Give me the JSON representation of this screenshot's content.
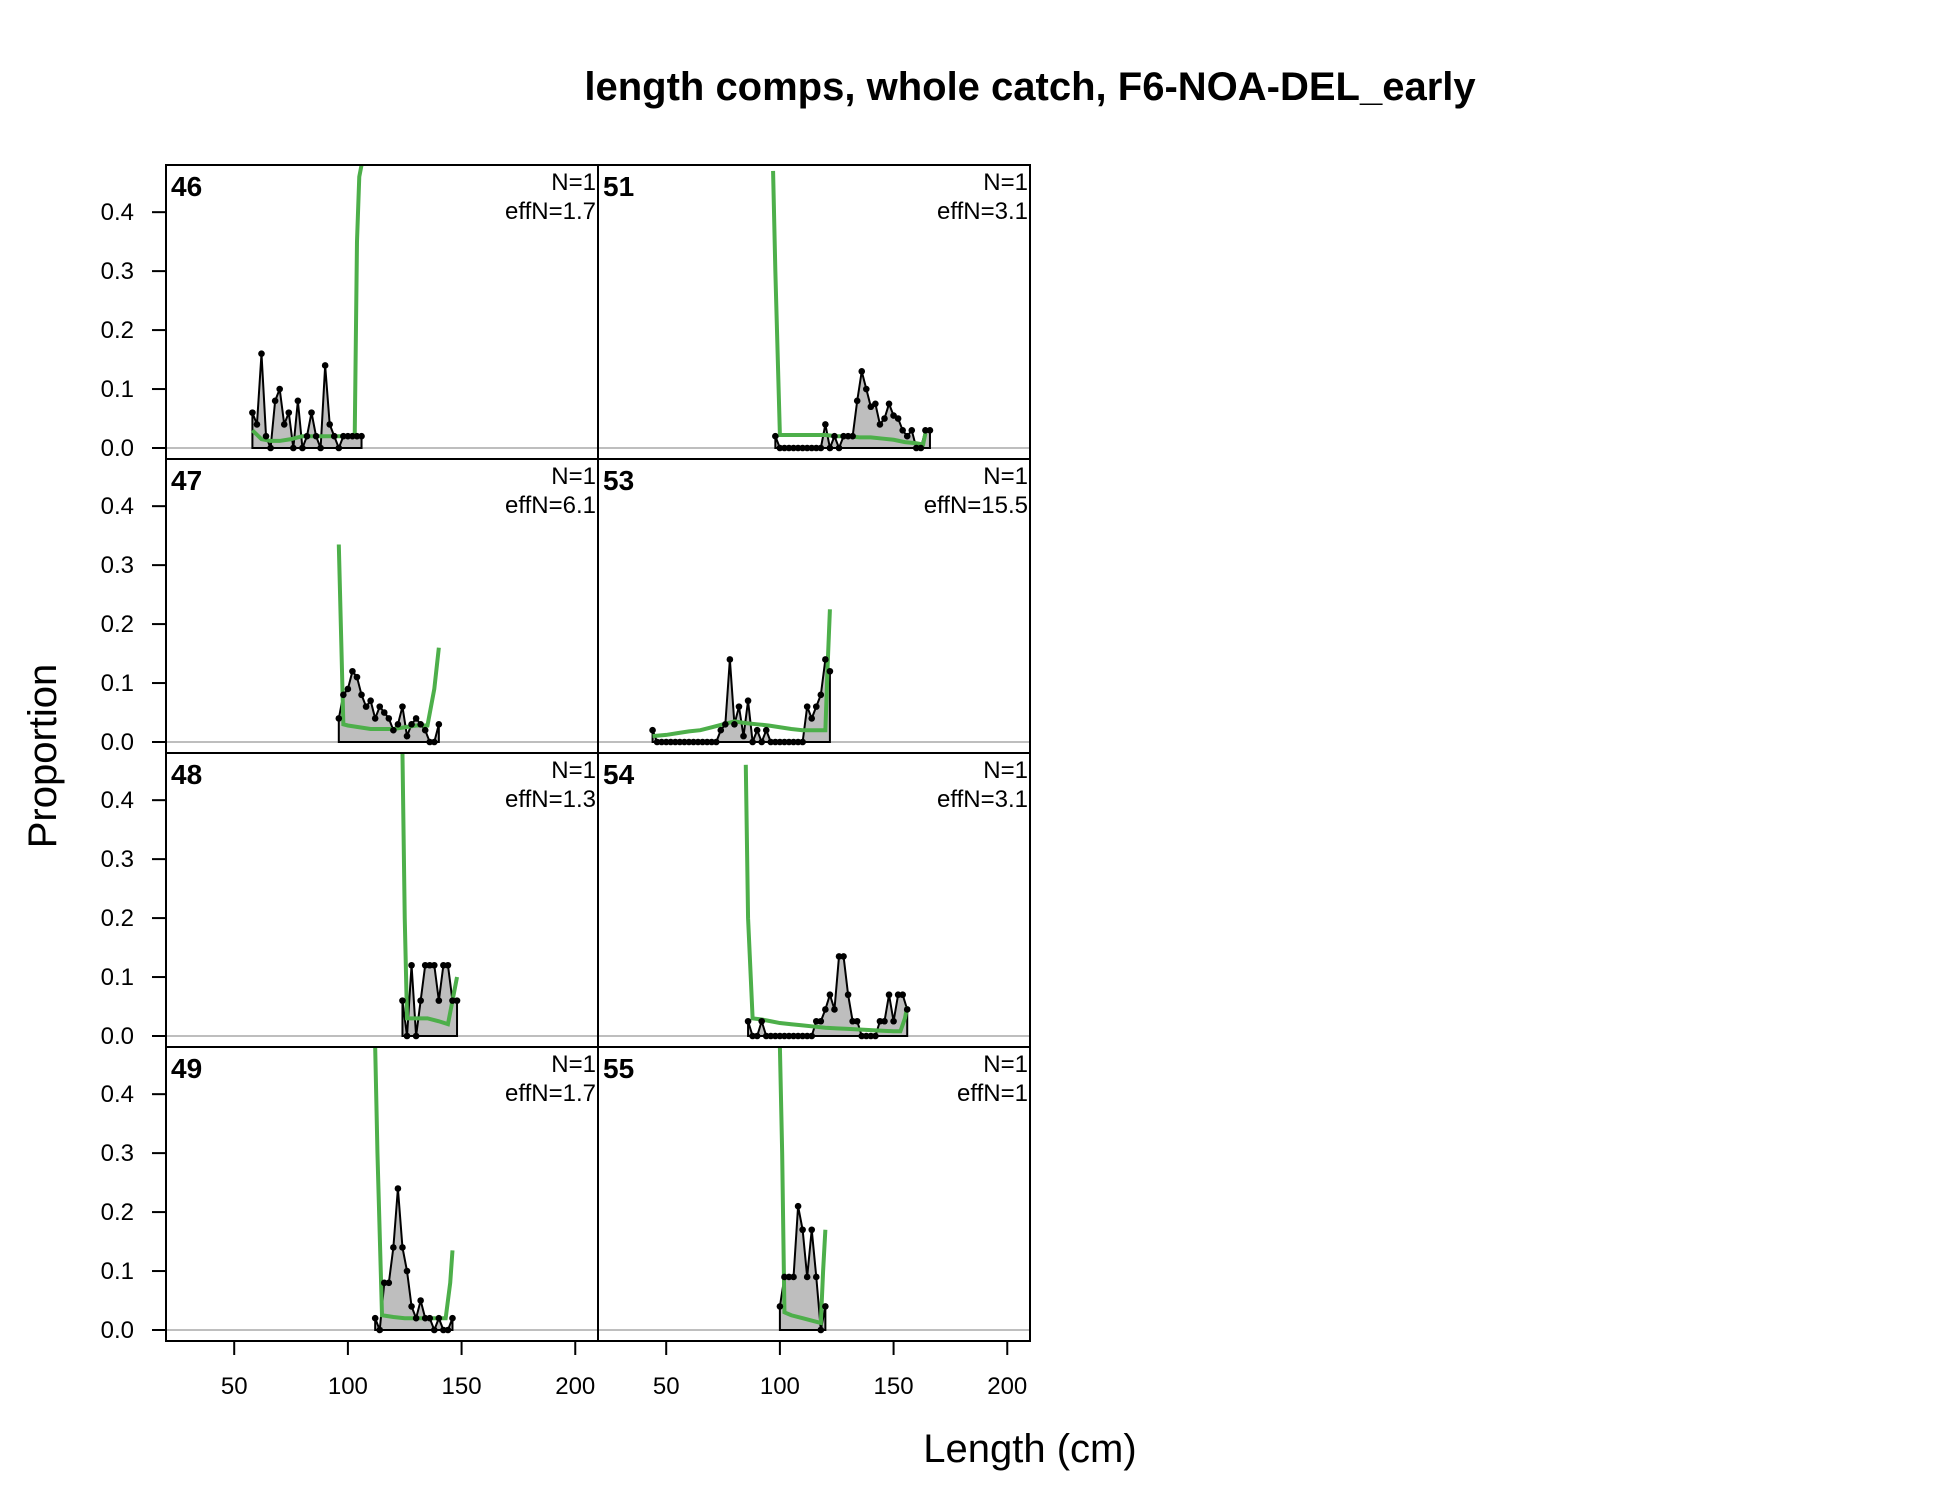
{
  "chart_data": {
    "type": "area",
    "title": "length comps, whole catch, F6-NOA-DEL_early",
    "xlabel": "Length (cm)",
    "ylabel": "Proportion",
    "xlim": [
      20,
      210
    ],
    "ylim": [
      0,
      0.48
    ],
    "xticks": [
      50,
      100,
      150,
      200
    ],
    "yticks": [
      0.0,
      0.1,
      0.2,
      0.3,
      0.4
    ],
    "xtick_labels": [
      "50",
      "100",
      "150",
      "200"
    ],
    "ytick_labels": [
      "0.0",
      "0.1",
      "0.2",
      "0.3",
      "0.4"
    ],
    "grid": false,
    "colors": {
      "observed_fill": "#bebebe",
      "observed_line": "#000000",
      "expected_line": "#4daf4a",
      "zero_line": "#bebebe"
    },
    "layout": "4 rows x 2 columns, column-major",
    "panels": [
      {
        "id": "46",
        "N": "N=1",
        "effN": "effN=1.7",
        "observed": {
          "x": [
            58,
            60,
            62,
            64,
            66,
            68,
            70,
            72,
            74,
            76,
            78,
            80,
            82,
            84,
            86,
            88,
            90,
            92,
            94,
            96,
            98,
            100,
            102,
            104,
            106
          ],
          "y": [
            0.06,
            0.04,
            0.16,
            0.02,
            0.0,
            0.08,
            0.1,
            0.04,
            0.06,
            0.0,
            0.08,
            0.0,
            0.02,
            0.06,
            0.02,
            0.0,
            0.14,
            0.04,
            0.02,
            0.0,
            0.02,
            0.02,
            0.02,
            0.02,
            0.02
          ]
        },
        "expected": {
          "x": [
            58,
            62,
            66,
            70,
            75,
            80,
            85,
            90,
            95,
            100,
            103,
            104,
            105,
            106
          ],
          "y": [
            0.03,
            0.015,
            0.012,
            0.012,
            0.015,
            0.02,
            0.02,
            0.02,
            0.02,
            0.02,
            0.02,
            0.35,
            0.46,
            0.48
          ]
        }
      },
      {
        "id": "47",
        "N": "N=1",
        "effN": "effN=6.1",
        "observed": {
          "x": [
            96,
            98,
            100,
            102,
            104,
            106,
            108,
            110,
            112,
            114,
            116,
            118,
            120,
            122,
            124,
            126,
            128,
            130,
            132,
            134,
            136,
            138,
            140
          ],
          "y": [
            0.04,
            0.08,
            0.09,
            0.12,
            0.11,
            0.08,
            0.06,
            0.07,
            0.04,
            0.06,
            0.05,
            0.04,
            0.02,
            0.03,
            0.06,
            0.01,
            0.03,
            0.04,
            0.03,
            0.02,
            0.0,
            0.0,
            0.03
          ]
        },
        "expected": {
          "x": [
            96,
            98,
            100,
            105,
            110,
            115,
            120,
            125,
            130,
            135,
            138,
            140
          ],
          "y": [
            0.335,
            0.03,
            0.028,
            0.025,
            0.022,
            0.022,
            0.022,
            0.025,
            0.028,
            0.028,
            0.09,
            0.16
          ]
        }
      },
      {
        "id": "48",
        "N": "N=1",
        "effN": "effN=1.3",
        "observed": {
          "x": [
            124,
            126,
            128,
            130,
            132,
            134,
            136,
            138,
            140,
            142,
            144,
            146,
            148
          ],
          "y": [
            0.06,
            0.0,
            0.12,
            0.0,
            0.06,
            0.12,
            0.12,
            0.12,
            0.06,
            0.12,
            0.12,
            0.06,
            0.06
          ]
        },
        "expected": {
          "x": [
            124,
            125,
            126,
            130,
            135,
            140,
            144,
            146,
            148
          ],
          "y": [
            0.48,
            0.2,
            0.03,
            0.03,
            0.03,
            0.025,
            0.02,
            0.06,
            0.1
          ]
        }
      },
      {
        "id": "49",
        "N": "N=1",
        "effN": "effN=1.7",
        "observed": {
          "x": [
            112,
            114,
            116,
            118,
            120,
            122,
            124,
            126,
            128,
            130,
            132,
            134,
            136,
            138,
            140,
            142,
            144,
            146
          ],
          "y": [
            0.02,
            0.0,
            0.08,
            0.08,
            0.14,
            0.24,
            0.14,
            0.1,
            0.04,
            0.02,
            0.05,
            0.02,
            0.02,
            0.0,
            0.02,
            0.0,
            0.0,
            0.02
          ]
        },
        "expected": {
          "x": [
            112,
            113,
            115,
            120,
            125,
            130,
            135,
            140,
            143,
            145,
            146
          ],
          "y": [
            0.48,
            0.3,
            0.025,
            0.022,
            0.02,
            0.02,
            0.02,
            0.02,
            0.02,
            0.08,
            0.135
          ]
        }
      },
      {
        "id": "51",
        "N": "N=1",
        "effN": "effN=3.1",
        "observed": {
          "x": [
            98,
            100,
            102,
            104,
            106,
            108,
            110,
            112,
            114,
            116,
            118,
            120,
            122,
            124,
            126,
            128,
            130,
            132,
            134,
            136,
            138,
            140,
            142,
            144,
            146,
            148,
            150,
            152,
            154,
            156,
            158,
            160,
            162,
            164,
            166
          ],
          "y": [
            0.02,
            0.0,
            0.0,
            0.0,
            0.0,
            0.0,
            0.0,
            0.0,
            0.0,
            0.0,
            0.0,
            0.04,
            0.0,
            0.02,
            0.0,
            0.02,
            0.02,
            0.02,
            0.08,
            0.13,
            0.1,
            0.07,
            0.075,
            0.04,
            0.05,
            0.075,
            0.055,
            0.05,
            0.03,
            0.02,
            0.03,
            0.0,
            0.0,
            0.03,
            0.03
          ]
        },
        "expected": {
          "x": [
            97,
            98,
            100,
            105,
            110,
            115,
            120,
            125,
            130,
            135,
            140,
            145,
            150,
            155,
            160,
            163,
            164
          ],
          "y": [
            0.47,
            0.3,
            0.022,
            0.022,
            0.022,
            0.022,
            0.022,
            0.02,
            0.02,
            0.018,
            0.018,
            0.016,
            0.014,
            0.01,
            0.008,
            0.006,
            0.025
          ]
        }
      },
      {
        "id": "53",
        "N": "N=1",
        "effN": "effN=15.5",
        "observed": {
          "x": [
            44,
            46,
            48,
            50,
            52,
            54,
            56,
            58,
            60,
            62,
            64,
            66,
            68,
            70,
            72,
            74,
            76,
            78,
            80,
            82,
            84,
            86,
            88,
            90,
            92,
            94,
            96,
            98,
            100,
            102,
            104,
            106,
            108,
            110,
            112,
            114,
            116,
            118,
            120,
            122
          ],
          "y": [
            0.02,
            0.0,
            0.0,
            0.0,
            0.0,
            0.0,
            0.0,
            0.0,
            0.0,
            0.0,
            0.0,
            0.0,
            0.0,
            0.0,
            0.0,
            0.02,
            0.03,
            0.14,
            0.03,
            0.06,
            0.01,
            0.07,
            0.0,
            0.02,
            0.0,
            0.02,
            0.0,
            0.0,
            0.0,
            0.0,
            0.0,
            0.0,
            0.0,
            0.0,
            0.06,
            0.04,
            0.06,
            0.08,
            0.14,
            0.12
          ]
        },
        "expected": {
          "x": [
            44,
            50,
            55,
            60,
            65,
            70,
            75,
            80,
            85,
            90,
            95,
            100,
            105,
            110,
            115,
            120,
            121,
            122
          ],
          "y": [
            0.01,
            0.012,
            0.015,
            0.018,
            0.02,
            0.025,
            0.03,
            0.035,
            0.032,
            0.03,
            0.028,
            0.025,
            0.022,
            0.02,
            0.02,
            0.02,
            0.13,
            0.225
          ]
        }
      },
      {
        "id": "54",
        "N": "N=1",
        "effN": "effN=3.1",
        "observed": {
          "x": [
            86,
            88,
            90,
            92,
            94,
            96,
            98,
            100,
            102,
            104,
            106,
            108,
            110,
            112,
            114,
            116,
            118,
            120,
            122,
            124,
            126,
            128,
            130,
            132,
            134,
            136,
            138,
            140,
            142,
            144,
            146,
            148,
            150,
            152,
            154,
            156
          ],
          "y": [
            0.025,
            0.0,
            0.0,
            0.025,
            0.0,
            0.0,
            0.0,
            0.0,
            0.0,
            0.0,
            0.0,
            0.0,
            0.0,
            0.0,
            0.0,
            0.025,
            0.025,
            0.045,
            0.07,
            0.045,
            0.135,
            0.135,
            0.07,
            0.025,
            0.025,
            0.0,
            0.0,
            0.0,
            0.0,
            0.025,
            0.025,
            0.07,
            0.025,
            0.07,
            0.07,
            0.045
          ]
        },
        "expected": {
          "x": [
            85,
            86,
            88,
            92,
            96,
            100,
            105,
            110,
            115,
            120,
            125,
            130,
            135,
            140,
            145,
            150,
            153,
            155,
            156
          ],
          "y": [
            0.46,
            0.2,
            0.03,
            0.028,
            0.025,
            0.022,
            0.02,
            0.018,
            0.016,
            0.014,
            0.013,
            0.012,
            0.011,
            0.01,
            0.009,
            0.008,
            0.008,
            0.03,
            0.05
          ]
        }
      },
      {
        "id": "55",
        "N": "N=1",
        "effN": "effN=1",
        "observed": {
          "x": [
            100,
            102,
            104,
            106,
            108,
            110,
            112,
            114,
            116,
            118,
            120
          ],
          "y": [
            0.04,
            0.09,
            0.09,
            0.09,
            0.21,
            0.17,
            0.09,
            0.17,
            0.09,
            0.0,
            0.04
          ]
        },
        "expected": {
          "x": [
            100,
            101,
            102,
            105,
            110,
            115,
            118,
            119,
            120
          ],
          "y": [
            0.48,
            0.3,
            0.03,
            0.025,
            0.02,
            0.015,
            0.012,
            0.1,
            0.17
          ]
        }
      }
    ]
  }
}
